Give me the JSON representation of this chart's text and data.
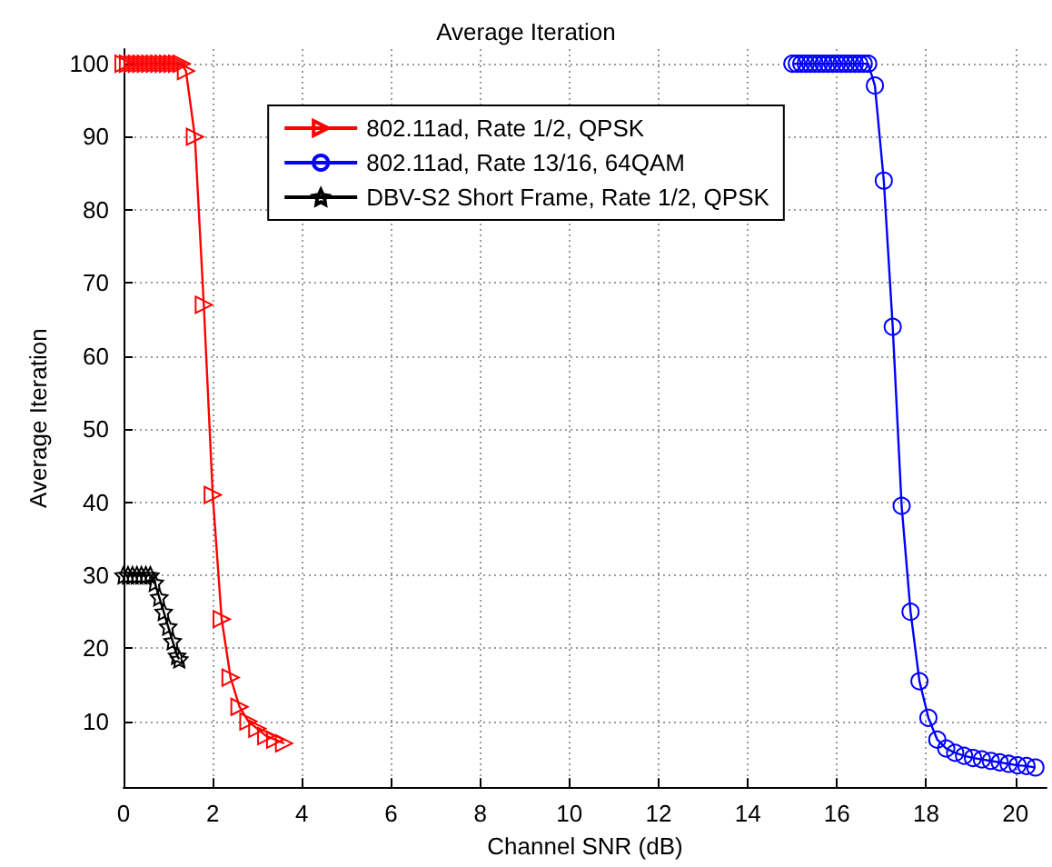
{
  "chart_data": {
    "type": "line",
    "title": "Average Iteration",
    "xlabel": "Channel SNR (dB)",
    "ylabel": "Average Iteration",
    "xlim": [
      0,
      20.7
    ],
    "xticks": [
      0,
      2,
      4,
      6,
      8,
      10,
      12,
      14,
      16,
      18,
      20
    ],
    "ylim": [
      1,
      102
    ],
    "yticks": [
      10,
      20,
      30,
      40,
      50,
      60,
      70,
      80,
      90,
      100
    ],
    "grid": true,
    "legend": "top",
    "line_style": "solid",
    "series": [
      {
        "name": "802.11ad, Rate 1/2, QPSK",
        "color": "#ff0000",
        "marker": "triangle",
        "x": [
          0,
          0.1,
          0.2,
          0.3,
          0.4,
          0.5,
          0.6,
          0.7,
          0.8,
          0.9,
          1.0,
          1.1,
          1.2,
          1.3,
          1.4,
          1.6,
          1.8,
          2.0,
          2.2,
          2.4,
          2.6,
          2.8,
          3.0,
          3.2,
          3.4,
          3.6
        ],
        "values": [
          100,
          100,
          100,
          100,
          100,
          100,
          100,
          100,
          100,
          100,
          100,
          100,
          100,
          100,
          99,
          90,
          67,
          41,
          24,
          16,
          12,
          10,
          9,
          8,
          7.5,
          7
        ]
      },
      {
        "name": "802.11ad, Rate 13/16, 64QAM",
        "color": "#0000ff",
        "marker": "circle",
        "x": [
          15,
          15.1,
          15.2,
          15.3,
          15.4,
          15.5,
          15.6,
          15.7,
          15.8,
          15.9,
          16,
          16.1,
          16.2,
          16.3,
          16.4,
          16.5,
          16.6,
          16.7,
          16.85,
          17.05,
          17.25,
          17.45,
          17.65,
          17.85,
          18.05,
          18.25,
          18.45,
          18.65,
          18.85,
          19.05,
          19.25,
          19.45,
          19.65,
          19.85,
          20.05,
          20.25,
          20.45
        ],
        "values": [
          100,
          100,
          100,
          100,
          100,
          100,
          100,
          100,
          100,
          100,
          100,
          100,
          100,
          100,
          100,
          100,
          100,
          100,
          97,
          84,
          64,
          39.5,
          25,
          15.5,
          10.5,
          7.5,
          6.3,
          5.7,
          5.3,
          5,
          4.8,
          4.6,
          4.4,
          4.2,
          4,
          3.9,
          3.7
        ]
      },
      {
        "name": "DBV-S2 Short Frame, Rate 1/2, QPSK",
        "color": "#000000",
        "marker": "star",
        "x": [
          0,
          0.1,
          0.2,
          0.3,
          0.4,
          0.5,
          0.6,
          0.7,
          0.8,
          0.9,
          1.0,
          1.1,
          1.2,
          1.25
        ],
        "values": [
          30,
          30,
          30,
          30,
          30,
          30,
          30,
          29,
          27,
          25,
          23,
          21,
          19,
          18.5
        ]
      }
    ]
  }
}
